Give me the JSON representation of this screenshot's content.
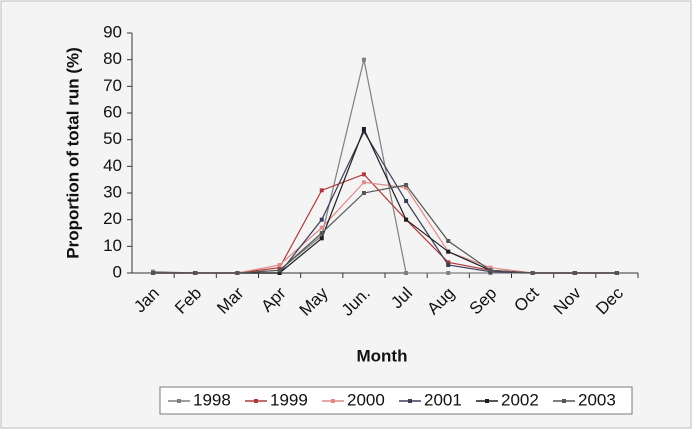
{
  "chart_data": {
    "type": "line",
    "xlabel": "Month",
    "ylabel": "Proportion of total run (%)",
    "categories": [
      "Jan",
      "Feb",
      "Mar",
      "Apr",
      "May",
      "Jun.",
      "Jul",
      "Aug",
      "Sep",
      "Oct",
      "Nov",
      "Dec"
    ],
    "series": [
      {
        "name": "1998",
        "color": "#7f7f7f",
        "values": [
          0.5,
          0,
          0,
          1,
          14,
          80,
          0,
          0,
          0,
          0,
          0,
          0
        ]
      },
      {
        "name": "1999",
        "color": "#b03a3a",
        "values": [
          0,
          0,
          0,
          2,
          31,
          37,
          20,
          4,
          1,
          0,
          0,
          0
        ]
      },
      {
        "name": "2000",
        "color": "#e08a8a",
        "values": [
          0,
          0,
          0,
          3,
          17,
          34,
          32,
          8,
          2,
          0,
          0,
          0
        ]
      },
      {
        "name": "2001",
        "color": "#3c3c5a",
        "values": [
          0,
          0,
          0,
          0,
          20,
          53,
          27,
          3,
          0.5,
          0,
          0,
          0
        ]
      },
      {
        "name": "2002",
        "color": "#1e1e1e",
        "values": [
          0,
          0,
          0,
          0,
          13,
          54,
          20,
          8,
          1,
          0,
          0,
          0
        ]
      },
      {
        "name": "2003",
        "color": "#555555",
        "values": [
          0,
          0,
          0,
          1,
          15,
          30,
          33,
          12,
          1,
          0,
          0,
          0
        ]
      }
    ],
    "ylim": [
      0,
      90
    ],
    "yticks": [
      0,
      10,
      20,
      30,
      40,
      50,
      60,
      70,
      80,
      90
    ],
    "grid": false
  }
}
